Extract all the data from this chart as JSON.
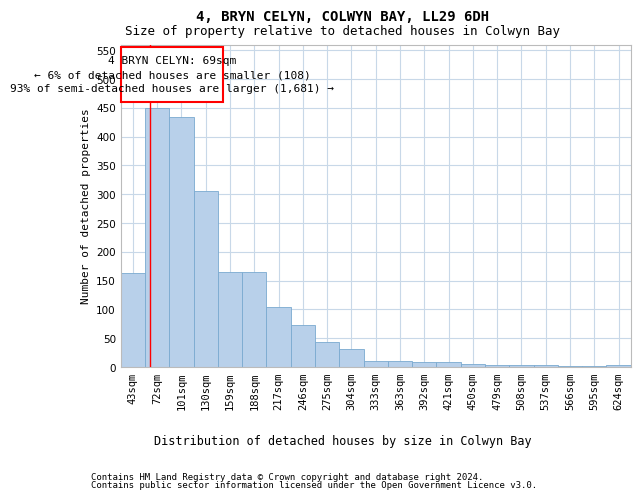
{
  "title": "4, BRYN CELYN, COLWYN BAY, LL29 6DH",
  "subtitle": "Size of property relative to detached houses in Colwyn Bay",
  "xlabel": "Distribution of detached houses by size in Colwyn Bay",
  "ylabel": "Number of detached properties",
  "categories": [
    "43sqm",
    "72sqm",
    "101sqm",
    "130sqm",
    "159sqm",
    "188sqm",
    "217sqm",
    "246sqm",
    "275sqm",
    "304sqm",
    "333sqm",
    "363sqm",
    "392sqm",
    "421sqm",
    "450sqm",
    "479sqm",
    "508sqm",
    "537sqm",
    "566sqm",
    "595sqm",
    "624sqm"
  ],
  "values": [
    163,
    449,
    434,
    305,
    165,
    165,
    105,
    73,
    43,
    32,
    10,
    10,
    8,
    8,
    5,
    3,
    3,
    3,
    2,
    2,
    4
  ],
  "bar_color": "#b8d0ea",
  "bar_edge_color": "#7aaad0",
  "grid_color": "#c8d8e8",
  "background_color": "#ffffff",
  "annotation_line1": "4 BRYN CELYN: 69sqm",
  "annotation_line2": "← 6% of detached houses are smaller (108)",
  "annotation_line3": "93% of semi-detached houses are larger (1,681) →",
  "vline_position": 0.72,
  "ylim": [
    0,
    560
  ],
  "yticks": [
    0,
    50,
    100,
    150,
    200,
    250,
    300,
    350,
    400,
    450,
    500,
    550
  ],
  "footer_line1": "Contains HM Land Registry data © Crown copyright and database right 2024.",
  "footer_line2": "Contains public sector information licensed under the Open Government Licence v3.0.",
  "title_fontsize": 10,
  "subtitle_fontsize": 9,
  "annotation_fontsize": 8,
  "ylabel_fontsize": 8,
  "xlabel_fontsize": 8.5,
  "tick_fontsize": 7.5,
  "footer_fontsize": 6.5
}
